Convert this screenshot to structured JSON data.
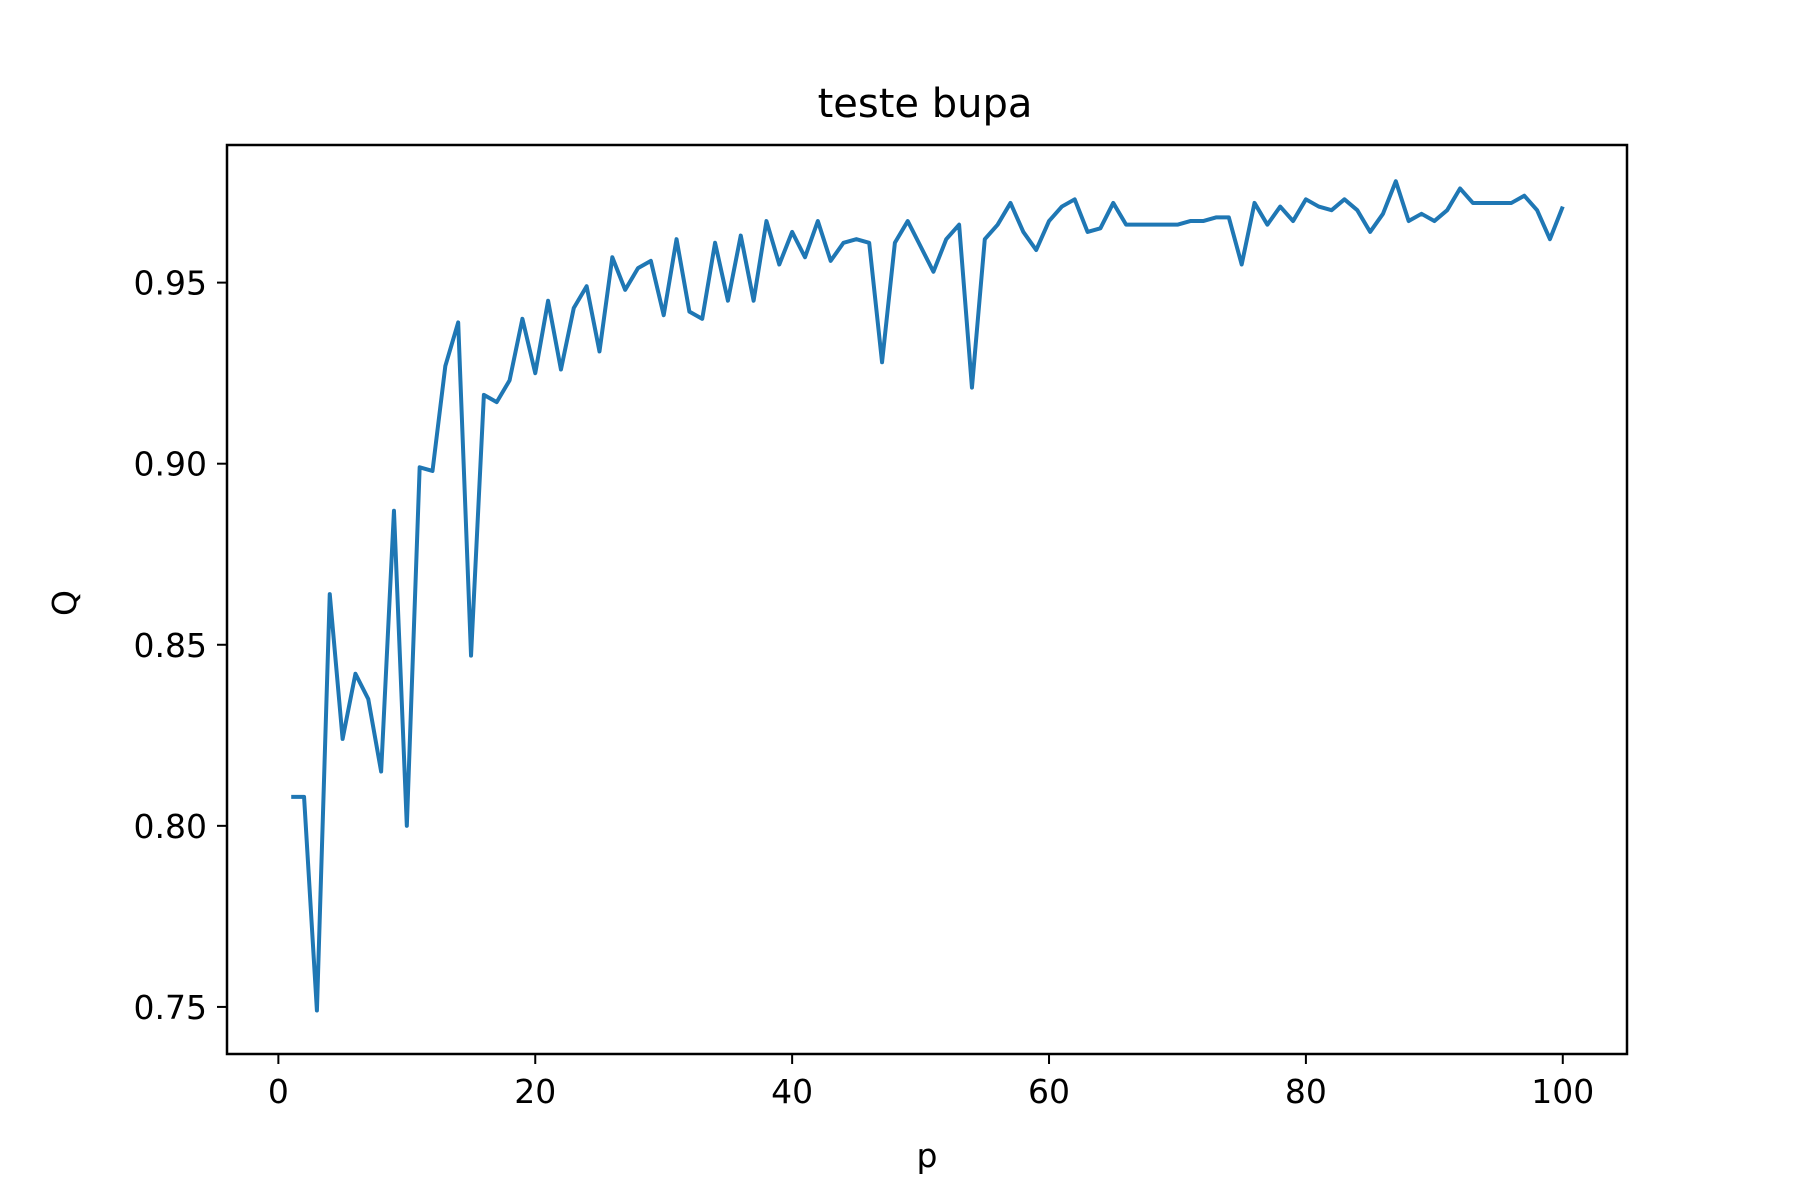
{
  "chart_data": {
    "type": "line",
    "title": "teste bupa",
    "xlabel": "p",
    "ylabel": "Q",
    "xlim": [
      -4,
      105
    ],
    "ylim": [
      0.737,
      0.988
    ],
    "xticks": [
      0,
      20,
      40,
      60,
      80,
      100
    ],
    "xtick_labels": [
      "0",
      "20",
      "40",
      "60",
      "80",
      "100"
    ],
    "yticks": [
      0.75,
      0.8,
      0.85,
      0.9,
      0.95
    ],
    "ytick_labels": [
      "0.75",
      "0.80",
      "0.85",
      "0.90",
      "0.95"
    ],
    "grid": false,
    "legend": "none",
    "series": [
      {
        "color": "#1f77b4",
        "x": [
          1,
          2,
          3,
          4,
          5,
          6,
          7,
          8,
          9,
          10,
          11,
          12,
          13,
          14,
          15,
          16,
          17,
          18,
          19,
          20,
          21,
          22,
          23,
          24,
          25,
          26,
          27,
          28,
          29,
          30,
          31,
          32,
          33,
          34,
          35,
          36,
          37,
          38,
          39,
          40,
          41,
          42,
          43,
          44,
          45,
          46,
          47,
          48,
          49,
          50,
          51,
          52,
          53,
          54,
          55,
          56,
          57,
          58,
          59,
          60,
          61,
          62,
          63,
          64,
          65,
          66,
          67,
          68,
          69,
          70,
          71,
          72,
          73,
          74,
          75,
          76,
          77,
          78,
          79,
          80,
          81,
          82,
          83,
          84,
          85,
          86,
          87,
          88,
          89,
          90,
          91,
          92,
          93,
          94,
          95,
          96,
          97,
          98,
          99,
          100
        ],
        "y": [
          0.808,
          0.808,
          0.749,
          0.864,
          0.824,
          0.842,
          0.835,
          0.815,
          0.887,
          0.8,
          0.899,
          0.898,
          0.927,
          0.939,
          0.847,
          0.919,
          0.917,
          0.923,
          0.94,
          0.925,
          0.945,
          0.926,
          0.943,
          0.949,
          0.931,
          0.957,
          0.948,
          0.954,
          0.956,
          0.941,
          0.962,
          0.942,
          0.94,
          0.961,
          0.945,
          0.963,
          0.945,
          0.967,
          0.955,
          0.964,
          0.957,
          0.967,
          0.956,
          0.961,
          0.962,
          0.961,
          0.928,
          0.961,
          0.967,
          0.96,
          0.953,
          0.962,
          0.966,
          0.921,
          0.962,
          0.966,
          0.972,
          0.964,
          0.959,
          0.967,
          0.971,
          0.973,
          0.964,
          0.965,
          0.972,
          0.966,
          0.966,
          0.966,
          0.966,
          0.966,
          0.967,
          0.967,
          0.968,
          0.968,
          0.955,
          0.972,
          0.966,
          0.971,
          0.967,
          0.973,
          0.971,
          0.97,
          0.973,
          0.97,
          0.964,
          0.969,
          0.978,
          0.967,
          0.969,
          0.967,
          0.97,
          0.976,
          0.972,
          0.972,
          0.972,
          0.972,
          0.974,
          0.97,
          0.962,
          0.971
        ]
      }
    ]
  }
}
